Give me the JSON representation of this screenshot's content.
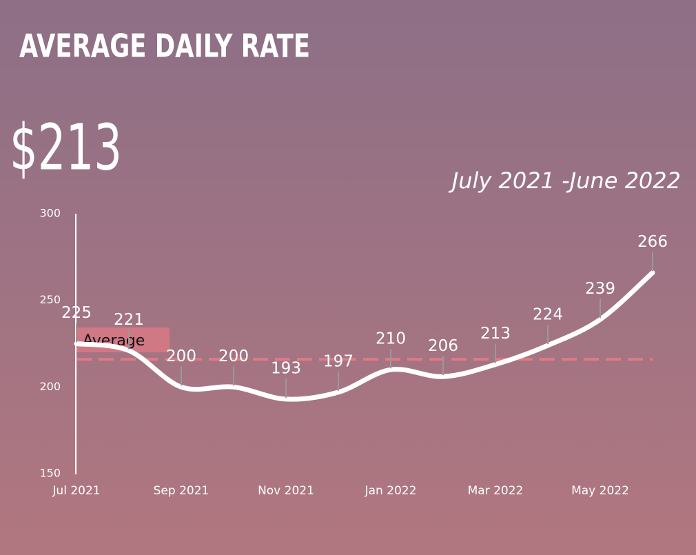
{
  "chart_data": {
    "type": "line",
    "title": "AVERAGE DAILY RATE",
    "kpi": "$213",
    "subtitle": "July 2021 -June 2022",
    "categories": [
      "Jul 2021",
      null,
      "Sep 2021",
      null,
      "Nov 2021",
      null,
      "Jan 2022",
      null,
      "Mar 2022",
      null,
      "May 2022",
      null
    ],
    "series": [
      {
        "name": "Average Daily Rate",
        "color": "#ffffff",
        "values": [
          225,
          221,
          200,
          200,
          193,
          197,
          210,
          206,
          213,
          224,
          239,
          266
        ]
      }
    ],
    "average": {
      "label": "Average",
      "value": 216,
      "color": "#e07a85"
    },
    "ylim": [
      150,
      300
    ],
    "yticks": [
      150,
      200,
      250,
      300
    ],
    "grid": false
  }
}
